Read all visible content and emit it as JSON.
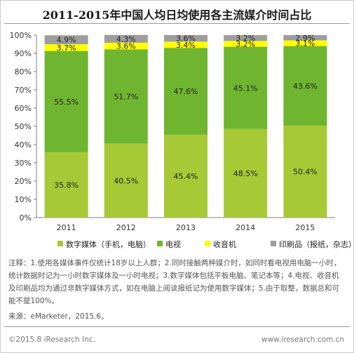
{
  "title": "2011-2015年中国人均日均使用各主流媒介时间占比",
  "chart_data": {
    "type": "bar",
    "stacked": true,
    "categories": [
      "2011",
      "2012",
      "2013",
      "2014",
      "2015"
    ],
    "series": [
      {
        "name": "数字媒体（手机，电脑）",
        "color": "#a6c935",
        "values": [
          35.8,
          40.5,
          45.4,
          48.5,
          50.4
        ],
        "labels": [
          "35.8%",
          "40.5%",
          "45.4%",
          "48.5%",
          "50.4%"
        ]
      },
      {
        "name": "电视",
        "color": "#6fb530",
        "values": [
          55.5,
          51.7,
          47.6,
          45.1,
          43.6
        ],
        "labels": [
          "55.5%",
          "51.7%",
          "47.6%",
          "45.1%",
          "43.6%"
        ]
      },
      {
        "name": "收音机",
        "color": "#ffff00",
        "values": [
          3.7,
          3.6,
          3.4,
          3.2,
          3.1
        ],
        "labels": [
          "3.7%",
          "3.6%",
          "3.4%",
          "3.2%",
          "3.1%"
        ]
      },
      {
        "name": "印刷品（报纸，杂志）",
        "color": "#9e9e9e",
        "values": [
          4.9,
          4.3,
          3.6,
          3.2,
          2.9
        ],
        "labels": [
          "4.9%",
          "4.3%",
          "3.6%",
          "3.2%",
          "2.9%"
        ]
      }
    ],
    "ylim": [
      0,
      100
    ],
    "yticks": [
      "0%",
      "10%",
      "20%",
      "30%",
      "40%",
      "50%",
      "60%",
      "70%",
      "80%",
      "90%",
      "100%"
    ],
    "grid": false,
    "legend_position": "bottom"
  },
  "notes": "注释：1.使用各媒体事件仅统计18岁以上人群；2.同时接触两种媒介时，如同时看电视用电脑一小时，统计数据时记为一小时数字媒体及一小时电视；3.数字媒体包括平板电脑、笔记本等；4.电视、收音机及印刷品均为通过非数字媒体方式，如在电脑上阅读报纸记为使用数字媒体；5.由于取整，数据总和可能不是100%。",
  "source": "来源：eMarketer，2015.6。",
  "copyright": "©2015.8 iResearch Inc.",
  "site": "www.iresearch.com.cn"
}
